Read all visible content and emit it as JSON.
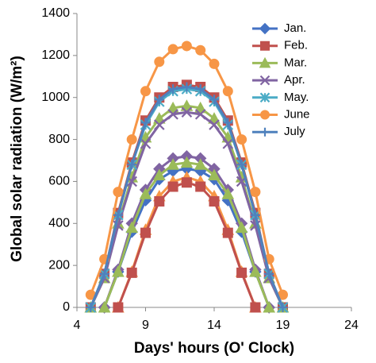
{
  "chart_data": {
    "type": "line",
    "x_label": "Days' hours (O' Clock)",
    "y_label": "Global solar radiation (W/m²)",
    "x": [
      5,
      6,
      7,
      8,
      9,
      10,
      11,
      12,
      13,
      14,
      15,
      16,
      17,
      18,
      19
    ],
    "xlim": [
      4,
      24
    ],
    "xticks": [
      4,
      9,
      14,
      19,
      24
    ],
    "ylim": [
      0,
      1400
    ],
    "yticks": [
      0,
      200,
      400,
      600,
      800,
      1000,
      1200,
      1400
    ],
    "grid": false,
    "legend": "upper-right",
    "series": [
      {
        "name": "Jan.",
        "color": "#4472c4",
        "marker": "diamond",
        "values": [
          null,
          0,
          170,
          360,
          510,
          610,
          650,
          660,
          650,
          610,
          510,
          360,
          170,
          0,
          null
        ]
      },
      {
        "name": "Feb.",
        "color": "#c0504d",
        "marker": "square",
        "values": [
          0,
          160,
          450,
          690,
          890,
          1000,
          1050,
          1060,
          1050,
          1000,
          890,
          690,
          450,
          160,
          0
        ]
      },
      {
        "name": "Mar.",
        "color": "#9bbb59",
        "marker": "triangle",
        "values": [
          0,
          140,
          400,
          620,
          810,
          900,
          950,
          960,
          950,
          900,
          810,
          620,
          400,
          140,
          0
        ]
      },
      {
        "name": "Apr.",
        "color": "#8064a2",
        "marker": "x",
        "values": [
          0,
          140,
          390,
          600,
          780,
          870,
          920,
          930,
          920,
          870,
          780,
          600,
          390,
          140,
          0
        ]
      },
      {
        "name": "May.",
        "color": "#4bacc6",
        "marker": "asterisk",
        "values": [
          0,
          160,
          440,
          680,
          870,
          980,
          1030,
          1040,
          1030,
          980,
          870,
          680,
          440,
          160,
          0
        ]
      },
      {
        "name": "June",
        "color": "#f79646",
        "marker": "circle",
        "values": [
          60,
          230,
          550,
          800,
          1030,
          1170,
          1230,
          1245,
          1225,
          1160,
          1030,
          800,
          550,
          230,
          60
        ]
      },
      {
        "name": "July",
        "color": "#4f81bd",
        "marker": "plus",
        "values": [
          0,
          160,
          440,
          680,
          880,
          990,
          1040,
          1050,
          1040,
          990,
          880,
          680,
          440,
          160,
          0
        ]
      },
      {
        "color": "#8064a2",
        "marker": "diamond",
        "values": [
          null,
          0,
          180,
          400,
          560,
          660,
          710,
          720,
          710,
          660,
          560,
          400,
          180,
          0,
          null
        ]
      },
      {
        "color": "#9bbb59",
        "marker": "triangle",
        "values": [
          null,
          0,
          170,
          380,
          540,
          630,
          680,
          690,
          680,
          630,
          540,
          380,
          170,
          0,
          null
        ]
      },
      {
        "color": "#f79646",
        "marker": "triangle",
        "values": [
          null,
          null,
          0,
          170,
          370,
          530,
          600,
          620,
          600,
          530,
          370,
          170,
          0,
          null,
          null
        ]
      },
      {
        "color": "#c0504d",
        "marker": "square",
        "values": [
          null,
          null,
          0,
          165,
          355,
          505,
          575,
          595,
          575,
          505,
          355,
          165,
          0,
          null,
          null
        ]
      }
    ]
  }
}
